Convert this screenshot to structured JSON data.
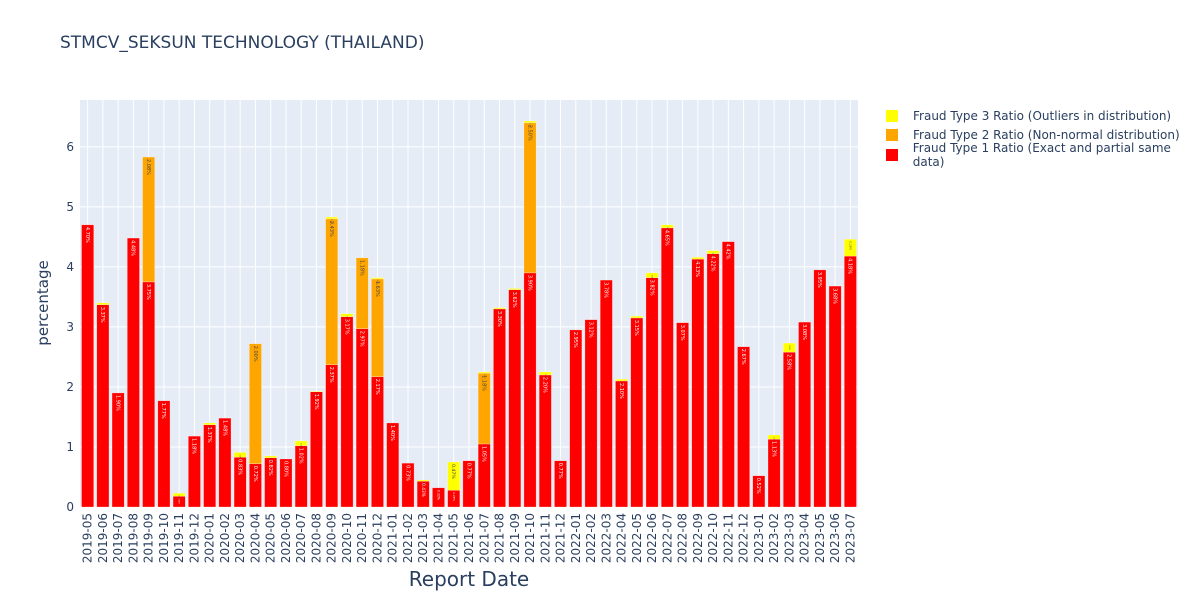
{
  "chart_data": {
    "type": "bar",
    "barmode": "stack",
    "title": "STMCV_SEKSUN TECHNOLOGY (THAILAND)",
    "xlabel": "Report Date",
    "ylabel": "percentage",
    "ylim": [
      0,
      6.78
    ],
    "yticks": [
      0,
      1,
      2,
      3,
      4,
      5,
      6
    ],
    "grid": true,
    "legend_position": "top-right-outside",
    "categories": [
      "2019-05",
      "2019-06",
      "2019-07",
      "2019-08",
      "2019-09",
      "2019-10",
      "2019-11",
      "2019-12",
      "2020-01",
      "2020-02",
      "2020-03",
      "2020-04",
      "2020-05",
      "2020-06",
      "2020-07",
      "2020-08",
      "2020-09",
      "2020-10",
      "2020-11",
      "2020-12",
      "2021-01",
      "2021-02",
      "2021-03",
      "2021-04",
      "2021-05",
      "2021-06",
      "2021-07",
      "2021-08",
      "2021-09",
      "2021-10",
      "2021-11",
      "2021-12",
      "2022-01",
      "2022-02",
      "2022-03",
      "2022-04",
      "2022-05",
      "2022-06",
      "2022-07",
      "2022-08",
      "2022-09",
      "2022-10",
      "2022-11",
      "2022-12",
      "2023-01",
      "2023-02",
      "2023-03",
      "2023-04",
      "2023-05",
      "2023-06",
      "2023-07"
    ],
    "series": [
      {
        "name": "Fraud Type 1 Ratio (Exact and partial same data)",
        "color": "#ff0000",
        "values": [
          4.7,
          3.37,
          1.9,
          4.48,
          3.75,
          1.77,
          0.18,
          1.18,
          1.37,
          1.48,
          0.83,
          0.72,
          0.82,
          0.8,
          1.02,
          1.92,
          2.37,
          3.17,
          2.97,
          2.17,
          1.4,
          0.73,
          0.43,
          0.32,
          0.28,
          0.77,
          1.05,
          3.3,
          3.62,
          3.9,
          2.2,
          0.77,
          2.95,
          3.12,
          3.78,
          2.1,
          3.15,
          3.82,
          4.65,
          3.07,
          4.13,
          4.22,
          4.42,
          2.67,
          0.52,
          1.13,
          2.58,
          3.08,
          3.95,
          3.68,
          4.18
        ]
      },
      {
        "name": "Fraud Type 2 Ratio (Non-normal distribution)",
        "color": "#ffa500",
        "values": [
          0,
          0,
          0,
          0,
          2.08,
          0,
          0,
          0,
          0,
          0,
          0,
          2.0,
          0,
          0,
          0,
          0,
          2.43,
          0,
          1.18,
          1.63,
          0,
          0,
          0,
          0,
          0,
          0,
          1.18,
          0,
          0,
          2.5,
          0,
          0,
          0,
          0,
          0,
          0,
          0,
          0,
          0,
          0,
          0,
          0,
          0,
          0,
          0,
          0,
          0,
          0,
          0,
          0,
          0
        ]
      },
      {
        "name": "Fraud Type 3 Ratio (Outliers in distribution)",
        "color": "#ffff00",
        "values": [
          0,
          0.03,
          0,
          0,
          0,
          0,
          0.05,
          0,
          0.03,
          0,
          0.08,
          0,
          0.03,
          0,
          0.08,
          0.01,
          0.03,
          0.05,
          0,
          0.02,
          0,
          0,
          0.02,
          0,
          0.47,
          0,
          0.02,
          0.02,
          0.02,
          0.03,
          0.05,
          0,
          0,
          0,
          0,
          0.03,
          0.03,
          0.08,
          0.05,
          0,
          0.03,
          0.05,
          0,
          0,
          0,
          0.07,
          0.15,
          0,
          0,
          0,
          0.28
        ]
      }
    ]
  }
}
